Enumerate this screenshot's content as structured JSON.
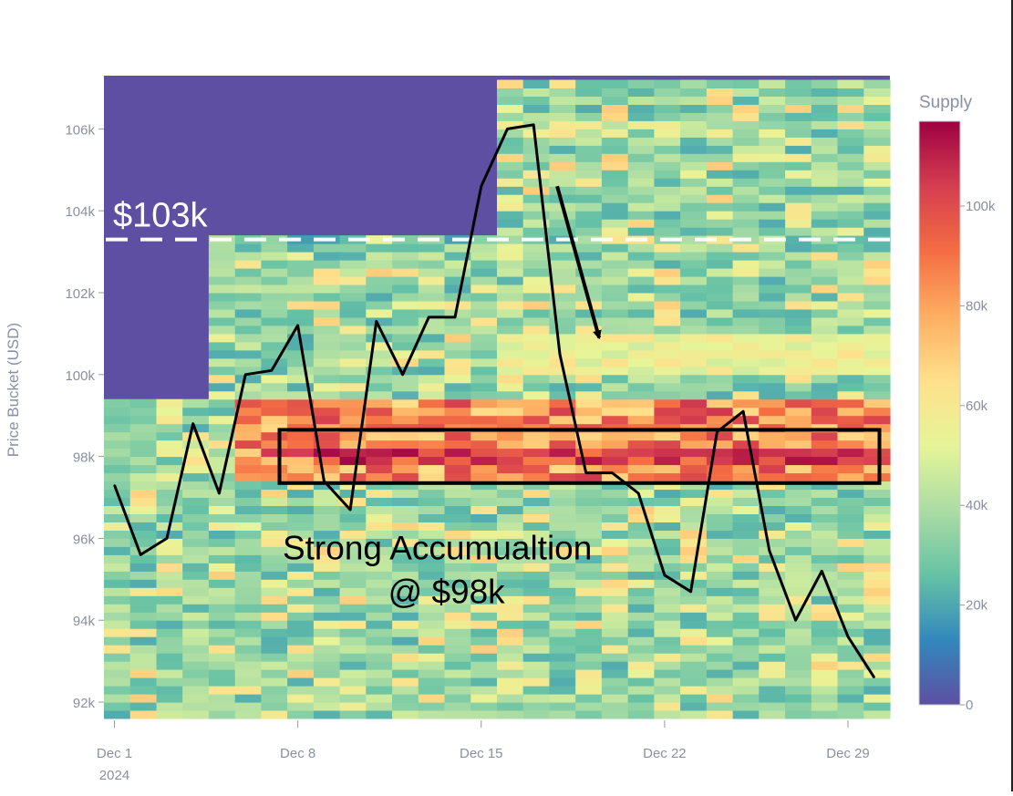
{
  "chart_data": {
    "type": "heatmap",
    "title": "",
    "xlabel": "",
    "ylabel": "Price Bucket (USD)",
    "x_ticks": [
      "Dec 1",
      "Dec 8",
      "Dec 15",
      "Dec 22",
      "Dec 29"
    ],
    "x_tick_days": [
      1,
      8,
      15,
      22,
      29
    ],
    "x_year_label": "2024",
    "x_range_days": [
      0.6,
      30.6
    ],
    "y_ticks": [
      "92k",
      "94k",
      "96k",
      "98k",
      "100k",
      "102k",
      "104k",
      "106k"
    ],
    "y_tick_values": [
      92000,
      94000,
      96000,
      98000,
      100000,
      102000,
      104000,
      106000
    ],
    "y_range": [
      91600,
      107300
    ],
    "colorbar": {
      "label": "Supply",
      "ticks": [
        "0",
        "20k",
        "40k",
        "60k",
        "80k",
        "100k"
      ],
      "tick_values": [
        0,
        20000,
        40000,
        60000,
        80000,
        100000
      ],
      "range": [
        0,
        117000
      ],
      "palette": [
        "#5e4fa2",
        "#3288bd",
        "#66c2a5",
        "#abdda4",
        "#e6f598",
        "#fee08b",
        "#fdae61",
        "#f46d43",
        "#d53e4f",
        "#9e0142"
      ]
    },
    "price_series": {
      "x_days": [
        1,
        2,
        3,
        4,
        5,
        6,
        7,
        8,
        9,
        10,
        11,
        12,
        13,
        14,
        15,
        16,
        17,
        18,
        19,
        20,
        21,
        22,
        23,
        24,
        25,
        26,
        27,
        28,
        29,
        30
      ],
      "values": [
        97300,
        95600,
        96000,
        98800,
        97100,
        100000,
        100100,
        101200,
        97400,
        96700,
        101300,
        100000,
        101400,
        101400,
        104600,
        106000,
        106100,
        100500,
        97600,
        97600,
        97100,
        95100,
        94700,
        98600,
        99100,
        95700,
        94000,
        95200,
        93600,
        92600
      ],
      "color": "#000000"
    },
    "reference_line": {
      "value": 103300,
      "label": "$103k",
      "color": "#ffffff"
    },
    "annotation_box": {
      "x_days": [
        7.3,
        30.2
      ],
      "y_values": [
        97350,
        98650
      ],
      "color": "#000000"
    },
    "arrow": {
      "from": [
        17.9,
        104600
      ],
      "to": [
        19.5,
        100900
      ],
      "color": "#000000"
    },
    "annotation_text": {
      "line1": "Strong Accumualtion",
      "line2": "@ $98k",
      "x_day": 13.5,
      "y_value": 95750
    }
  }
}
